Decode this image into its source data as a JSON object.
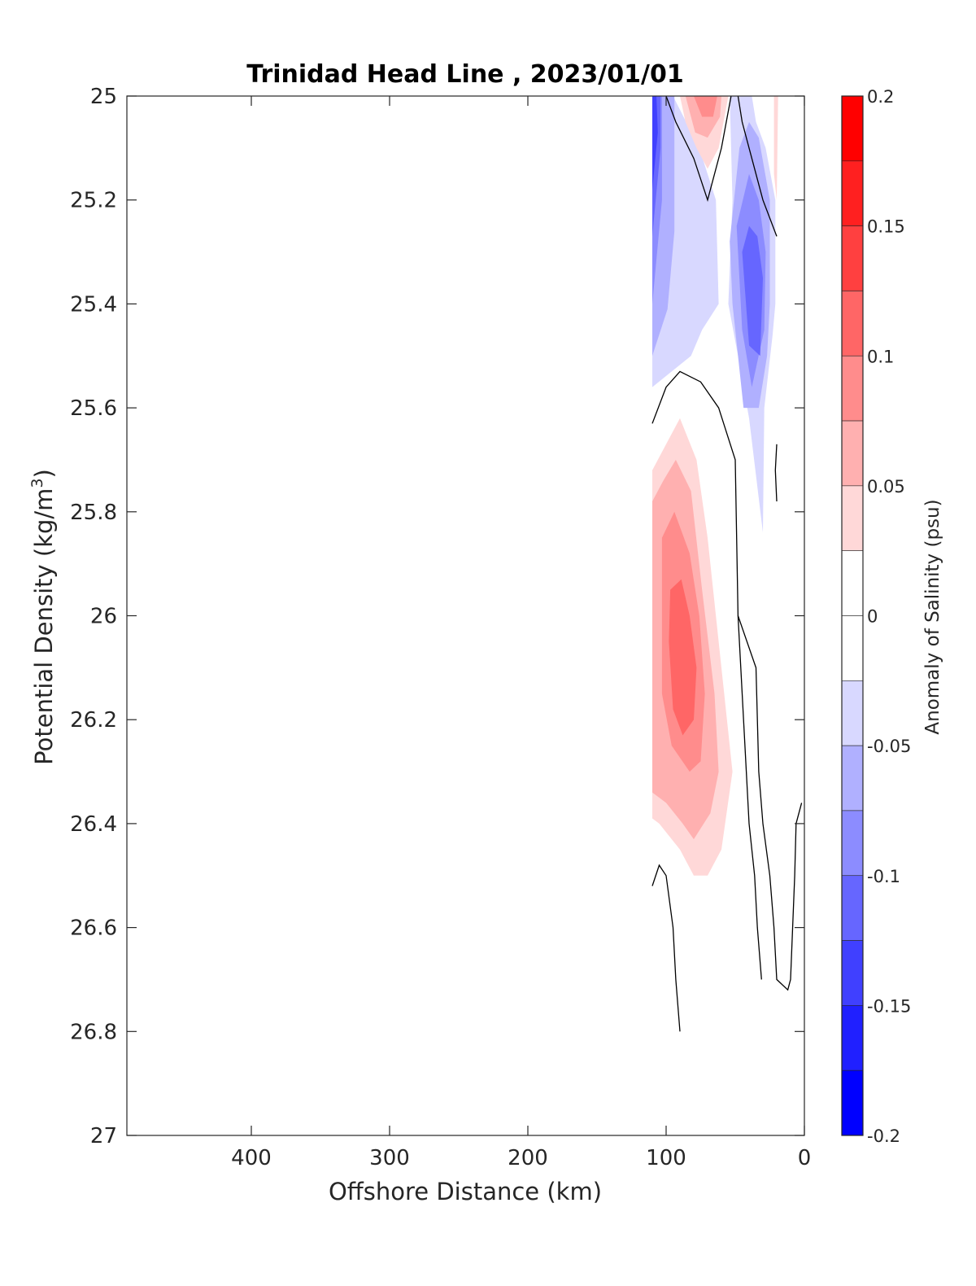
{
  "chart_data": {
    "type": "contour",
    "title": "Trinidad Head Line , 2023/01/01",
    "xlabel": "Offshore Distance (km)",
    "ylabel_main": "Potential Density (kg/m",
    "ylabel_sup": "3",
    "ylabel_end": ")",
    "colorbar_label": "Anomaly of Salinity (psu)",
    "xlim": [
      490,
      0
    ],
    "x_reversed": true,
    "ylim": [
      25,
      27
    ],
    "y_reversed": true,
    "xticks": [
      400,
      300,
      200,
      100,
      0
    ],
    "xtick_labels": [
      "400",
      "300",
      "200",
      "100",
      "0"
    ],
    "yticks": [
      25,
      25.2,
      25.4,
      25.6,
      25.8,
      26,
      26.2,
      26.4,
      26.6,
      26.8,
      27
    ],
    "ytick_labels": [
      "25",
      "25.2",
      "25.4",
      "25.6",
      "25.8",
      "26",
      "26.2",
      "26.4",
      "26.6",
      "26.8",
      "27"
    ],
    "colorbar": {
      "range": [
        -0.2,
        0.2
      ],
      "ticks": [
        0.2,
        0.15,
        0.1,
        0.05,
        0,
        -0.05,
        -0.1,
        -0.15,
        -0.2
      ],
      "tick_labels": [
        "0.2",
        "0.15",
        "0.1",
        "0.05",
        "0",
        "-0.05",
        "-0.1",
        "-0.15",
        "-0.2"
      ],
      "levels": [
        {
          "min": 0.175,
          "max": 0.2,
          "color": "#ff0000"
        },
        {
          "min": 0.15,
          "max": 0.175,
          "color": "#ff2020"
        },
        {
          "min": 0.125,
          "max": 0.15,
          "color": "#ff4040"
        },
        {
          "min": 0.1,
          "max": 0.125,
          "color": "#ff6666"
        },
        {
          "min": 0.075,
          "max": 0.1,
          "color": "#ff8c8c"
        },
        {
          "min": 0.05,
          "max": 0.075,
          "color": "#ffb0b0"
        },
        {
          "min": 0.025,
          "max": 0.05,
          "color": "#ffd8d8"
        },
        {
          "min": 0,
          "max": 0.025,
          "color": "#ffffff"
        },
        {
          "min": -0.025,
          "max": 0,
          "color": "#ffffff"
        },
        {
          "min": -0.05,
          "max": -0.025,
          "color": "#d8d8ff"
        },
        {
          "min": -0.075,
          "max": -0.05,
          "color": "#b0b0ff"
        },
        {
          "min": -0.1,
          "max": -0.075,
          "color": "#8c8cff"
        },
        {
          "min": -0.125,
          "max": -0.1,
          "color": "#6666ff"
        },
        {
          "min": -0.15,
          "max": -0.125,
          "color": "#4040ff"
        },
        {
          "min": -0.175,
          "max": -0.15,
          "color": "#2020ff"
        },
        {
          "min": -0.2,
          "max": -0.175,
          "color": "#0000ff"
        }
      ]
    },
    "filled_regions": [
      {
        "name": "negative-anomaly-nearshore-band-left",
        "color": "#d8d8ff",
        "points": [
          [
            110,
            25
          ],
          [
            110,
            25.56
          ],
          [
            82,
            25.5
          ],
          [
            74,
            25.45
          ],
          [
            62,
            25.4
          ],
          [
            64,
            25.2
          ],
          [
            76,
            25.1
          ],
          [
            95,
            25
          ]
        ]
      },
      {
        "name": "negative-anomaly-nearshore-band-left-2",
        "color": "#b0b0ff",
        "points": [
          [
            110,
            25
          ],
          [
            110,
            25.5
          ],
          [
            99,
            25.41
          ],
          [
            94,
            25.26
          ],
          [
            94,
            25
          ],
          [
            102,
            25
          ]
        ]
      },
      {
        "name": "negative-anomaly-nearshore-band-left-3",
        "color": "#8c8cff",
        "points": [
          [
            110,
            25
          ],
          [
            110,
            25.4
          ],
          [
            103,
            25.2
          ],
          [
            103,
            25
          ]
        ]
      },
      {
        "name": "negative-anomaly-nearshore-band-left-4",
        "color": "#6666ff",
        "points": [
          [
            110,
            25
          ],
          [
            110,
            25.27
          ],
          [
            104,
            25.1
          ],
          [
            104,
            25
          ]
        ]
      },
      {
        "name": "negative-anomaly-nearshore-band-left-5",
        "color": "#4040ff",
        "points": [
          [
            110,
            25
          ],
          [
            110,
            25.18
          ],
          [
            106,
            25.07
          ],
          [
            107,
            25
          ]
        ]
      },
      {
        "name": "positive-anomaly-surface",
        "color": "#ffd8d8",
        "points": [
          [
            90,
            25
          ],
          [
            86,
            25.05
          ],
          [
            78,
            25.1
          ],
          [
            70,
            25.14
          ],
          [
            62,
            25.1
          ],
          [
            55,
            25
          ]
        ]
      },
      {
        "name": "positive-anomaly-surface-2",
        "color": "#ffb0b0",
        "points": [
          [
            86,
            25
          ],
          [
            79,
            25.07
          ],
          [
            70,
            25.08
          ],
          [
            61,
            25.04
          ],
          [
            60,
            25
          ]
        ]
      },
      {
        "name": "positive-anomaly-surface-3",
        "color": "#ff8c8c",
        "points": [
          [
            80,
            25
          ],
          [
            74,
            25.04
          ],
          [
            66,
            25.04
          ],
          [
            63,
            25
          ]
        ]
      },
      {
        "name": "negative-anomaly-core-right",
        "color": "#d8d8ff",
        "points": [
          [
            54,
            25
          ],
          [
            52,
            25.2
          ],
          [
            55,
            25.4
          ],
          [
            48,
            25.5
          ],
          [
            40,
            25.62
          ],
          [
            30,
            25.84
          ],
          [
            29,
            25.6
          ],
          [
            23,
            25.46
          ],
          [
            21,
            25.4
          ],
          [
            21,
            25.2
          ],
          [
            28,
            25.1
          ],
          [
            35,
            25.05
          ],
          [
            38,
            25
          ]
        ]
      },
      {
        "name": "negative-anomaly-core-right-2",
        "color": "#b0b0ff",
        "points": [
          [
            47,
            25.1
          ],
          [
            54,
            25.28
          ],
          [
            52,
            25.4
          ],
          [
            44,
            25.6
          ],
          [
            33,
            25.6
          ],
          [
            27,
            25.5
          ],
          [
            25,
            25.4
          ],
          [
            25,
            25.2
          ],
          [
            33,
            25.08
          ],
          [
            40,
            25.05
          ]
        ]
      },
      {
        "name": "negative-anomaly-core-right-3",
        "color": "#8c8cff",
        "points": [
          [
            40,
            25.15
          ],
          [
            49,
            25.25
          ],
          [
            45,
            25.45
          ],
          [
            38,
            25.56
          ],
          [
            29,
            25.45
          ],
          [
            28,
            25.3
          ],
          [
            33,
            25.2
          ]
        ]
      },
      {
        "name": "negative-anomaly-core-right-4",
        "color": "#6666ff",
        "points": [
          [
            40,
            25.25
          ],
          [
            45,
            25.3
          ],
          [
            40,
            25.48
          ],
          [
            32,
            25.5
          ],
          [
            30,
            25.35
          ],
          [
            34,
            25.27
          ]
        ]
      },
      {
        "name": "positive-anomaly-nearshore-edge",
        "color": "#ffd8d8",
        "points": [
          [
            22,
            25
          ],
          [
            22,
            25.15
          ],
          [
            20,
            25.2
          ],
          [
            19,
            25
          ]
        ]
      },
      {
        "name": "positive-anomaly-deep-core",
        "color": "#ffd8d8",
        "points": [
          [
            110,
            25.72
          ],
          [
            100,
            25.67
          ],
          [
            90,
            25.62
          ],
          [
            78,
            25.7
          ],
          [
            70,
            25.85
          ],
          [
            60,
            26.1
          ],
          [
            52,
            26.3
          ],
          [
            60,
            26.45
          ],
          [
            70,
            26.5
          ],
          [
            80,
            26.5
          ],
          [
            90,
            26.45
          ],
          [
            105,
            26.4
          ],
          [
            110,
            26.39
          ]
        ]
      },
      {
        "name": "positive-anomaly-deep-core-2",
        "color": "#ffb0b0",
        "points": [
          [
            110,
            25.78
          ],
          [
            102,
            25.74
          ],
          [
            93,
            25.7
          ],
          [
            82,
            25.76
          ],
          [
            74,
            25.95
          ],
          [
            65,
            26.15
          ],
          [
            62,
            26.3
          ],
          [
            68,
            26.38
          ],
          [
            80,
            26.43
          ],
          [
            88,
            26.4
          ],
          [
            100,
            26.36
          ],
          [
            110,
            26.34
          ]
        ]
      },
      {
        "name": "positive-anomaly-deep-core-3",
        "color": "#ff8c8c",
        "points": [
          [
            103,
            25.85
          ],
          [
            94,
            25.8
          ],
          [
            83,
            25.88
          ],
          [
            76,
            26
          ],
          [
            72,
            26.15
          ],
          [
            75,
            26.28
          ],
          [
            83,
            26.3
          ],
          [
            96,
            26.25
          ],
          [
            103,
            26.15
          ]
        ]
      },
      {
        "name": "positive-anomaly-deep-core-4",
        "color": "#ff6666",
        "points": [
          [
            97,
            25.95
          ],
          [
            89,
            25.93
          ],
          [
            83,
            26
          ],
          [
            78,
            26.1
          ],
          [
            80,
            26.2
          ],
          [
            88,
            26.23
          ],
          [
            95,
            26.18
          ],
          [
            98,
            26.05
          ]
        ]
      }
    ],
    "contour_lines": [
      {
        "name": "zero-contour-surface-loop",
        "points": [
          [
            100,
            25
          ],
          [
            93,
            25.05
          ],
          [
            80,
            25.12
          ],
          [
            70,
            25.2
          ],
          [
            60,
            25.1
          ],
          [
            53,
            25
          ]
        ]
      },
      {
        "name": "zero-contour-nearshore",
        "points": [
          [
            48,
            25
          ],
          [
            45,
            25.05
          ],
          [
            40,
            25.1
          ],
          [
            30,
            25.2
          ],
          [
            20,
            25.27
          ]
        ]
      },
      {
        "name": "zero-contour-deep-loop",
        "points": [
          [
            110,
            25.63
          ],
          [
            100,
            25.56
          ],
          [
            90,
            25.53
          ],
          [
            75,
            25.55
          ],
          [
            62,
            25.6
          ],
          [
            50,
            25.7
          ],
          [
            48,
            26
          ],
          [
            35,
            26.1
          ],
          [
            33,
            26.3
          ],
          [
            30,
            26.4
          ],
          [
            25,
            26.5
          ],
          [
            22,
            26.6
          ],
          [
            20,
            26.7
          ],
          [
            12,
            26.72
          ],
          [
            10,
            26.7
          ],
          [
            7,
            26.5
          ],
          [
            6,
            26.4
          ],
          [
            2,
            26.36
          ]
        ]
      },
      {
        "name": "zero-contour-deep-tail",
        "points": [
          [
            110,
            26.52
          ],
          [
            105,
            26.48
          ],
          [
            100,
            26.5
          ],
          [
            95,
            26.6
          ],
          [
            93,
            26.7
          ],
          [
            90,
            26.8
          ]
        ]
      },
      {
        "name": "zero-contour-nearshore-bottom",
        "points": [
          [
            48,
            26
          ],
          [
            44,
            26.2
          ],
          [
            40,
            26.4
          ],
          [
            36,
            26.5
          ],
          [
            34,
            26.6
          ],
          [
            31,
            26.7
          ]
        ]
      },
      {
        "name": "zero-contour-edge",
        "points": [
          [
            20,
            25.67
          ],
          [
            21,
            25.72
          ],
          [
            20,
            25.78
          ]
        ]
      }
    ]
  }
}
